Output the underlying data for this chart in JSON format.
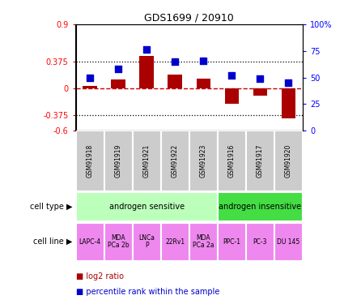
{
  "title": "GDS1699 / 20910",
  "samples": [
    "GSM91918",
    "GSM91919",
    "GSM91921",
    "GSM91922",
    "GSM91923",
    "GSM91916",
    "GSM91917",
    "GSM91920"
  ],
  "log2_ratio": [
    0.03,
    0.12,
    0.46,
    0.19,
    0.13,
    -0.22,
    -0.1,
    -0.42
  ],
  "percentile_rank": [
    50,
    58,
    76,
    65,
    66,
    52,
    49,
    45
  ],
  "ylim_left": [
    -0.6,
    0.9
  ],
  "ylim_right": [
    0,
    100
  ],
  "yticks_left": [
    -0.6,
    -0.375,
    0,
    0.375,
    0.9
  ],
  "ytick_labels_left": [
    "-0.6",
    "-0.375",
    "0",
    "0.375",
    "0.9"
  ],
  "yticks_right": [
    0,
    25,
    50,
    75,
    100
  ],
  "ytick_labels_right": [
    "0",
    "25",
    "50",
    "75",
    "100%"
  ],
  "hlines": [
    0.375,
    -0.375
  ],
  "bar_color": "#aa0000",
  "dot_color": "#0000cc",
  "dashed_line_color": "#cc0000",
  "cell_types": [
    {
      "label": "androgen sensitive",
      "span": [
        0,
        5
      ],
      "color": "#bbffbb"
    },
    {
      "label": "androgen insensitive",
      "span": [
        5,
        8
      ],
      "color": "#44dd44"
    }
  ],
  "cell_lines": [
    {
      "label": "LAPC-4",
      "span": [
        0,
        1
      ]
    },
    {
      "label": "MDA\nPCa 2b",
      "span": [
        1,
        2
      ]
    },
    {
      "label": "LNCa\nP",
      "span": [
        2,
        3
      ]
    },
    {
      "label": "22Rv1",
      "span": [
        3,
        4
      ]
    },
    {
      "label": "MDA\nPCa 2a",
      "span": [
        4,
        5
      ]
    },
    {
      "label": "PPC-1",
      "span": [
        5,
        6
      ]
    },
    {
      "label": "PC-3",
      "span": [
        6,
        7
      ]
    },
    {
      "label": "DU 145",
      "span": [
        7,
        8
      ]
    }
  ],
  "cell_line_color": "#ee88ee",
  "gsm_bg_color": "#cccccc",
  "bar_width": 0.5,
  "dot_size": 30,
  "legend_items": [
    {
      "color": "#aa0000",
      "label": "log2 ratio"
    },
    {
      "color": "#0000cc",
      "label": "percentile rank within the sample"
    }
  ]
}
